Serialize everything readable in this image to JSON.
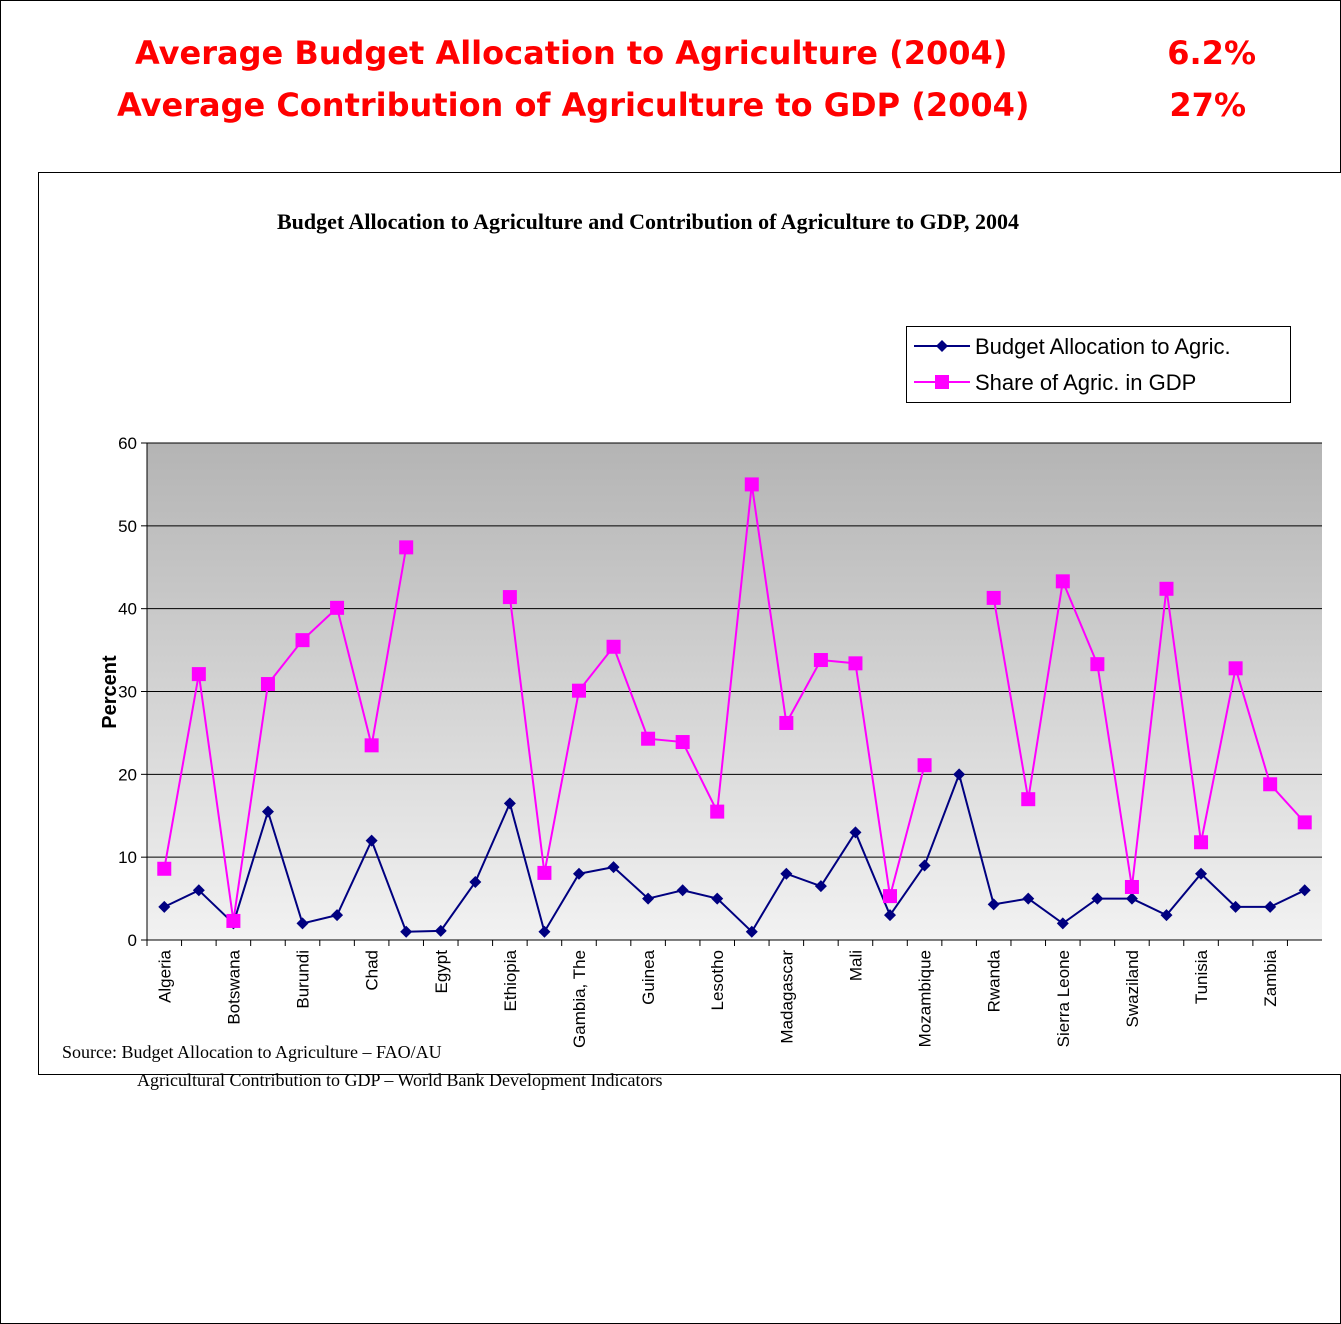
{
  "header": {
    "lines": [
      {
        "text": "Average Budget Allocation to Agriculture (2004)",
        "value": "6.2%"
      },
      {
        "text": "Average Contribution of Agriculture to GDP (2004)",
        "value": "27%"
      }
    ]
  },
  "chart_data": {
    "type": "line",
    "title": "Budget Allocation to Agriculture and Contribution of Agriculture to GDP, 2004",
    "y_label": "Percent",
    "categories": [
      "Algeria",
      null,
      "Botswana",
      null,
      "Burundi",
      null,
      "Chad",
      null,
      "Egypt",
      null,
      "Ethiopia",
      null,
      "Gambia, The",
      null,
      "Guinea",
      null,
      "Lesotho",
      null,
      "Madagascar",
      null,
      "Mali",
      null,
      "Mozambique",
      null,
      "Rwanda",
      null,
      "Sierra Leone",
      null,
      "Swaziland",
      null,
      "Tunisia",
      null,
      "Zambia",
      null
    ],
    "series": [
      {
        "name": "Budget Allocation to Agric.",
        "color": "#000080",
        "marker": "diamond",
        "values": [
          4,
          6,
          2,
          15.5,
          2,
          3,
          12,
          1,
          1.1,
          7,
          16.5,
          1,
          8,
          8.8,
          5,
          6,
          5,
          1,
          8,
          6.5,
          13,
          3,
          9,
          20,
          4.3,
          5,
          2,
          5,
          5,
          3,
          8,
          4,
          4,
          6
        ]
      },
      {
        "name": "Share of Agric. in GDP",
        "color": "#ff00ff",
        "marker": "square",
        "values": [
          8.6,
          32.1,
          2.3,
          30.9,
          36.2,
          40.1,
          23.5,
          47.4,
          null,
          null,
          41.4,
          8.1,
          30.1,
          35.4,
          24.3,
          23.9,
          15.5,
          55,
          26.2,
          33.8,
          33.4,
          5.3,
          21.1,
          null,
          41.3,
          17,
          43.3,
          33.3,
          6.4,
          42.4,
          11.8,
          32.8,
          18.8,
          14.2
        ]
      }
    ],
    "ylim": [
      0,
      60
    ],
    "yticks": [
      0,
      10,
      20,
      30,
      40,
      50,
      60
    ],
    "grid": true,
    "legend": "upper right"
  },
  "source": {
    "lines": [
      "Source:  Budget Allocation to Agriculture – FAO/AU",
      "Agricultural Contribution to GDP – World Bank Development Indicators"
    ]
  }
}
